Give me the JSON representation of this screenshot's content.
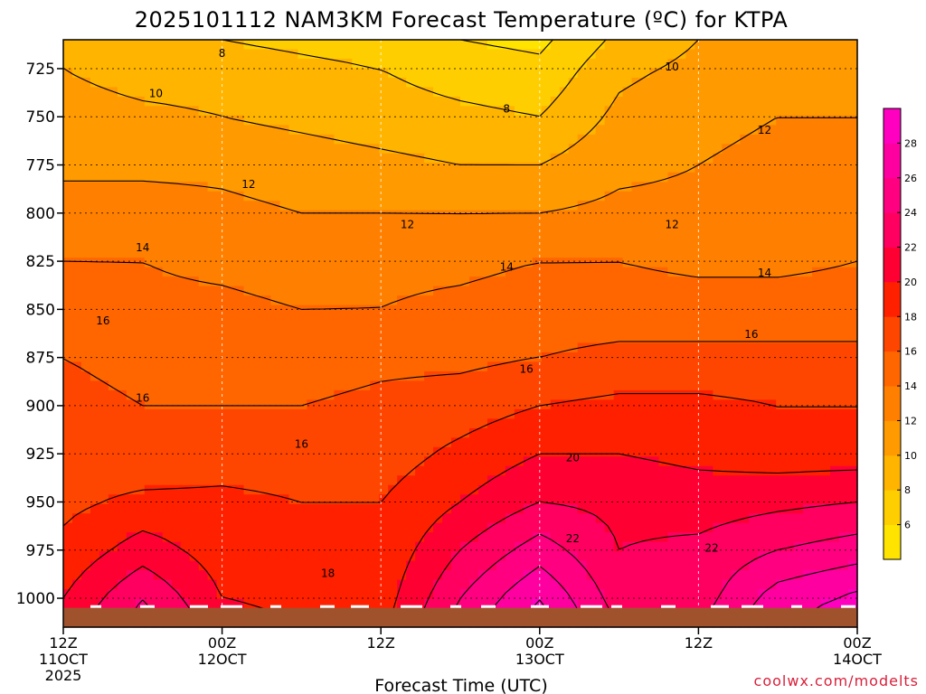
{
  "chart_data": {
    "type": "heatmap",
    "title": "2025101112 NAM3KM Forecast Temperature (ºC) for KTPA",
    "xlabel": "Forecast Time (UTC)",
    "ylabel": "",
    "credit": "coolwx.com/modelts",
    "x_ticks": [
      {
        "hour": 0,
        "line1": "12Z",
        "line2": "11OCT",
        "line3": "2025"
      },
      {
        "hour": 12,
        "line1": "00Z",
        "line2": "12OCT",
        "line3": ""
      },
      {
        "hour": 24,
        "line1": "12Z",
        "line2": "",
        "line3": ""
      },
      {
        "hour": 36,
        "line1": "00Z",
        "line2": "13OCT",
        "line3": ""
      },
      {
        "hour": 48,
        "line1": "12Z",
        "line2": "",
        "line3": ""
      },
      {
        "hour": 60,
        "line1": "00Z",
        "line2": "14OCT",
        "line3": ""
      }
    ],
    "x_range_hours": [
      0,
      60
    ],
    "y_ticks": [
      "725",
      "750",
      "775",
      "800",
      "825",
      "850",
      "875",
      "900",
      "925",
      "950",
      "975",
      "1000"
    ],
    "y_range_hpa": [
      710,
      1015
    ],
    "surface_pressure_hpa": 1005,
    "colorbar": {
      "ticks": [
        "6",
        "8",
        "10",
        "12",
        "14",
        "16",
        "18",
        "20",
        "22",
        "24",
        "26",
        "28"
      ],
      "levels": [
        4,
        6,
        8,
        10,
        12,
        14,
        16,
        18,
        20,
        22,
        24,
        26,
        28,
        30
      ],
      "colors": [
        "#ffe400",
        "#ffce00",
        "#ffb400",
        "#ff9a00",
        "#ff8000",
        "#ff6600",
        "#ff4600",
        "#ff2000",
        "#ff0033",
        "#ff0060",
        "#ff0080",
        "#ff00a0",
        "#ff00c0"
      ]
    },
    "contour_labels": [
      {
        "text": "8",
        "hour": 12.0,
        "p": 717
      },
      {
        "text": "8",
        "hour": 33.5,
        "p": 746
      },
      {
        "text": "10",
        "hour": 7.0,
        "p": 738
      },
      {
        "text": "10",
        "hour": 46.0,
        "p": 724
      },
      {
        "text": "12",
        "hour": 14.0,
        "p": 785
      },
      {
        "text": "12",
        "hour": 26.0,
        "p": 806
      },
      {
        "text": "12",
        "hour": 46.0,
        "p": 806
      },
      {
        "text": "12",
        "hour": 53.0,
        "p": 757
      },
      {
        "text": "14",
        "hour": 6.0,
        "p": 818
      },
      {
        "text": "14",
        "hour": 33.5,
        "p": 828
      },
      {
        "text": "14",
        "hour": 53.0,
        "p": 831
      },
      {
        "text": "16",
        "hour": 3.0,
        "p": 856
      },
      {
        "text": "16",
        "hour": 6.0,
        "p": 896
      },
      {
        "text": "16",
        "hour": 18.0,
        "p": 920
      },
      {
        "text": "16",
        "hour": 35.0,
        "p": 881
      },
      {
        "text": "16",
        "hour": 52.0,
        "p": 863
      },
      {
        "text": "18",
        "hour": 20.0,
        "p": 987
      },
      {
        "text": "20",
        "hour": 38.5,
        "p": 927
      },
      {
        "text": "22",
        "hour": 38.5,
        "p": 969
      },
      {
        "text": "22",
        "hour": 49.0,
        "p": 974
      }
    ],
    "temperature_profile": {
      "pressure_levels_hpa": [
        710,
        725,
        750,
        775,
        800,
        825,
        850,
        875,
        900,
        925,
        950,
        975,
        1000,
        1015
      ],
      "hours": [
        0,
        6,
        12,
        18,
        24,
        30,
        36,
        42,
        48,
        54,
        60
      ],
      "values_degC": [
        [
          9.5,
          8.5,
          8.0,
          7.5,
          7.0,
          6.0,
          5.5,
          8.5,
          10.0,
          10.5,
          10.5
        ],
        [
          10.0,
          9.0,
          9.0,
          8.5,
          8.0,
          7.0,
          6.5,
          9.5,
          10.5,
          11.0,
          11.0
        ],
        [
          11.0,
          10.5,
          10.0,
          9.5,
          9.0,
          8.5,
          8.0,
          10.5,
          11.5,
          12.0,
          12.0
        ],
        [
          11.5,
          11.5,
          11.5,
          11.0,
          10.5,
          10.0,
          10.0,
          11.5,
          12.0,
          12.5,
          12.5
        ],
        [
          13.0,
          13.0,
          12.5,
          12.0,
          12.0,
          12.0,
          12.0,
          12.5,
          12.5,
          13.0,
          13.0
        ],
        [
          14.0,
          14.0,
          13.5,
          13.0,
          13.5,
          13.5,
          14.0,
          14.0,
          13.5,
          13.5,
          14.0
        ],
        [
          15.0,
          14.5,
          14.5,
          14.0,
          14.0,
          14.5,
          15.0,
          15.0,
          15.0,
          15.0,
          15.0
        ],
        [
          16.0,
          15.5,
          15.0,
          15.0,
          15.5,
          15.5,
          16.0,
          16.5,
          16.5,
          16.5,
          16.5
        ],
        [
          16.5,
          16.0,
          16.0,
          16.0,
          16.5,
          17.0,
          18.0,
          18.5,
          18.5,
          18.0,
          18.0
        ],
        [
          17.0,
          16.5,
          17.0,
          17.0,
          17.0,
          18.5,
          20.0,
          20.0,
          19.5,
          19.0,
          19.0
        ],
        [
          17.5,
          18.5,
          18.5,
          18.0,
          18.0,
          20.0,
          22.0,
          21.5,
          21.0,
          21.5,
          22.0
        ],
        [
          18.5,
          21.0,
          19.0,
          18.5,
          18.5,
          22.0,
          25.0,
          22.0,
          22.5,
          24.0,
          25.0
        ],
        [
          20.0,
          24.0,
          20.0,
          19.5,
          19.0,
          24.0,
          28.0,
          23.0,
          23.0,
          27.0,
          28.5
        ],
        [
          21.0,
          25.0,
          21.0,
          20.0,
          19.5,
          25.0,
          29.0,
          24.0,
          24.0,
          28.0,
          29.0
        ]
      ]
    }
  }
}
